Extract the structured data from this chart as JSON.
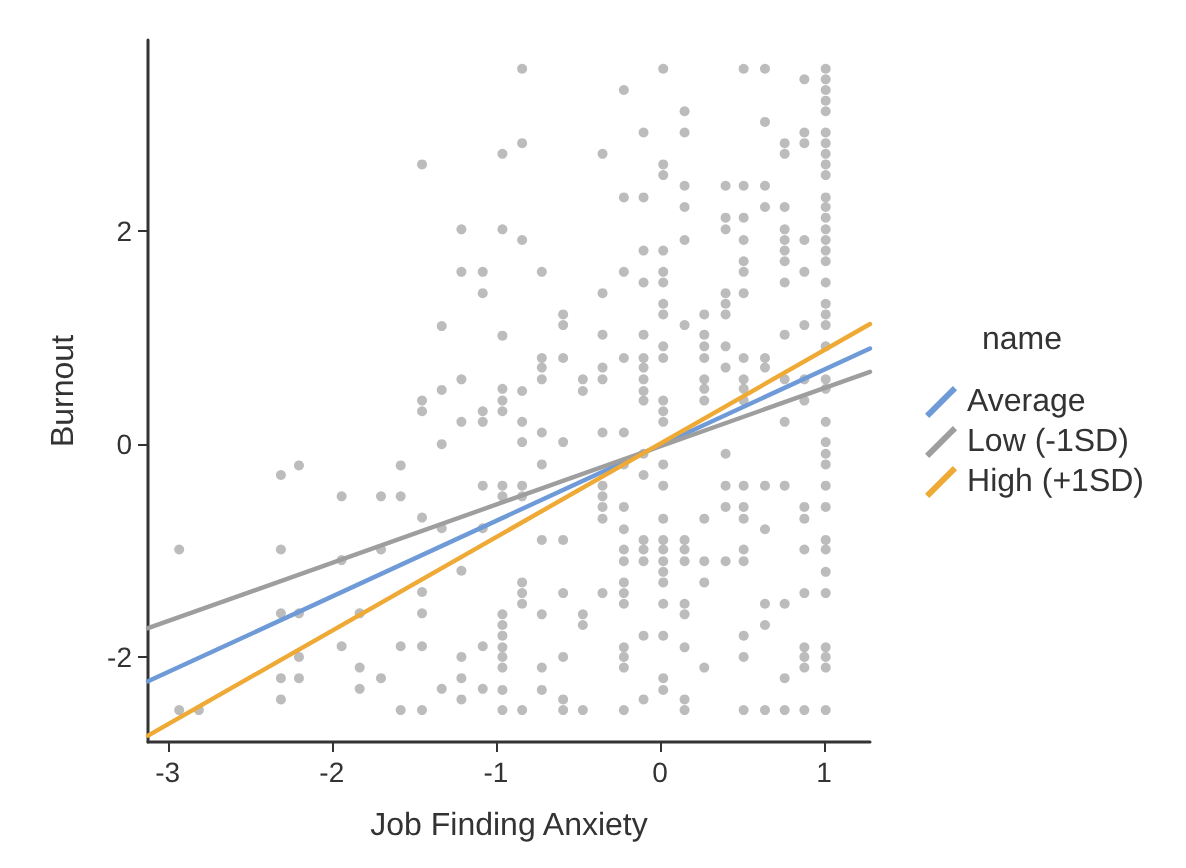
{
  "chart_data": {
    "type": "scatter",
    "xlabel": "Job Finding Anxiety",
    "ylabel": "Burnout",
    "legend_title": "name",
    "legend": "right",
    "xlim": [
      -3.12,
      1.28
    ],
    "ylim": [
      -2.8,
      3.8
    ],
    "xticks": [
      -3,
      -2,
      -1,
      0,
      1
    ],
    "yticks": [
      -2,
      0,
      2
    ],
    "series": [
      {
        "marker": "circle",
        "color": "#a6a6a6",
        "x": [
          -2.93,
          -2.93,
          -2.81,
          -2.31,
          -2.2,
          -2.31,
          -2.31,
          -2.2,
          -2.2,
          -2.31,
          -2.2,
          -2.31,
          -1.94,
          -1.94,
          -1.94,
          -1.83,
          -1.83,
          -1.83,
          -1.7,
          -1.7,
          -1.7,
          -1.58,
          -1.58,
          -1.58,
          -1.58,
          -1.45,
          -1.45,
          -1.45,
          -1.45,
          -1.45,
          -1.45,
          -1.45,
          -1.45,
          -1.33,
          -1.33,
          -1.33,
          -1.33,
          -1.33,
          -1.21,
          -1.21,
          -1.21,
          -1.21,
          -1.21,
          -1.21,
          -1.21,
          -1.21,
          -1.08,
          -1.08,
          -1.08,
          -1.08,
          -1.08,
          -1.08,
          -1.08,
          -1.08,
          -0.96,
          -0.96,
          -0.96,
          -0.96,
          -0.96,
          -0.96,
          -0.96,
          -0.96,
          -0.96,
          -0.96,
          -0.96,
          -0.96,
          -0.96,
          -0.96,
          -0.96,
          -0.96,
          -0.84,
          -0.84,
          -0.84,
          -0.84,
          -0.84,
          -0.84,
          -0.84,
          -0.84,
          -0.84,
          -0.84,
          -0.84,
          -0.84,
          -0.72,
          -0.72,
          -0.72,
          -0.72,
          -0.72,
          -0.72,
          -0.72,
          -0.72,
          -0.72,
          -0.72,
          -0.59,
          -0.59,
          -0.59,
          -0.59,
          -0.59,
          -0.59,
          -0.59,
          -0.59,
          -0.59,
          -0.47,
          -0.47,
          -0.47,
          -0.47,
          -0.47,
          -0.35,
          -0.35,
          -0.35,
          -0.35,
          -0.35,
          -0.35,
          -0.35,
          -0.35,
          -0.35,
          -0.35,
          -0.35,
          -0.22,
          -0.22,
          -0.22,
          -0.22,
          -0.22,
          -0.22,
          -0.22,
          -0.22,
          -0.22,
          -0.22,
          -0.22,
          -0.22,
          -0.22,
          -0.22,
          -0.22,
          -0.22,
          -0.22,
          -0.1,
          -0.1,
          -0.1,
          -0.1,
          -0.1,
          -0.1,
          -0.1,
          -0.1,
          -0.1,
          -0.1,
          -0.1,
          -0.1,
          -0.1,
          -0.1,
          -0.1,
          -0.1,
          -0.1,
          0.02,
          0.02,
          0.02,
          0.02,
          0.02,
          0.02,
          0.02,
          0.02,
          0.02,
          0.02,
          0.02,
          0.02,
          0.02,
          0.02,
          0.02,
          0.02,
          0.02,
          0.02,
          0.02,
          0.02,
          0.02,
          0.02,
          0.02,
          0.02,
          0.02,
          0.15,
          0.15,
          0.15,
          0.15,
          0.15,
          0.15,
          0.15,
          0.15,
          0.15,
          0.15,
          0.15,
          0.15,
          0.15,
          0.15,
          0.27,
          0.27,
          0.27,
          0.27,
          0.27,
          0.27,
          0.27,
          0.27,
          0.27,
          0.27,
          0.27,
          0.4,
          0.4,
          0.4,
          0.4,
          0.4,
          0.4,
          0.4,
          0.4,
          0.4,
          0.4,
          0.4,
          0.4,
          0.51,
          0.51,
          0.51,
          0.51,
          0.51,
          0.51,
          0.51,
          0.51,
          0.51,
          0.51,
          0.51,
          0.51,
          0.51,
          0.51,
          0.51,
          0.51,
          0.51,
          0.51,
          0.51,
          0.64,
          0.64,
          0.64,
          0.64,
          0.64,
          0.64,
          0.64,
          0.64,
          0.64,
          0.64,
          0.64,
          0.76,
          0.76,
          0.76,
          0.76,
          0.76,
          0.76,
          0.76,
          0.76,
          0.76,
          0.76,
          0.76,
          0.76,
          0.76,
          0.76,
          0.76,
          0.88,
          0.88,
          0.88,
          0.88,
          0.88,
          0.88,
          0.88,
          0.88,
          0.88,
          0.88,
          0.88,
          0.88,
          0.88,
          0.88,
          0.88,
          0.88,
          1.01,
          1.01,
          1.01,
          1.01,
          1.01,
          1.01,
          1.01,
          1.01,
          1.01,
          1.01,
          1.01,
          1.01,
          1.01,
          1.01,
          1.01,
          1.01,
          1.01,
          1.01,
          1.01,
          1.01,
          1.01,
          1.01,
          1.01,
          1.01,
          1.01,
          1.01,
          1.01,
          1.01,
          1.01,
          1.01,
          1.01,
          1.01,
          1.01,
          1.01,
          1.01,
          1.01,
          1.01,
          1.01
        ],
        "values": [
          -0.99,
          -2.5,
          -2.5,
          -0.29,
          -0.2,
          -0.99,
          -1.59,
          -1.59,
          -2.0,
          -2.2,
          -2.2,
          -2.4,
          -0.49,
          -1.09,
          -1.9,
          -1.59,
          -2.1,
          -2.3,
          -0.49,
          -0.99,
          -2.2,
          -0.2,
          -0.49,
          -1.9,
          -2.5,
          2.63,
          0.41,
          0.31,
          -0.69,
          -1.39,
          -1.59,
          -1.9,
          -2.5,
          1.11,
          0.51,
          0,
          -0.79,
          -2.3,
          2.02,
          1.62,
          0.61,
          0.21,
          -1.19,
          -2.0,
          -2.2,
          -2.4,
          1.62,
          1.42,
          0.31,
          0.21,
          -0.39,
          -0.79,
          -1.9,
          -2.3,
          2.73,
          2.02,
          1.02,
          0.52,
          0.41,
          0.31,
          -0.39,
          -0.49,
          -1.6,
          -1.7,
          -1.8,
          -1.91,
          -2.0,
          -2.1,
          -2.31,
          -2.5,
          3.53,
          2.83,
          1.92,
          0.5,
          0.21,
          0.02,
          -0.39,
          -0.49,
          -1.3,
          -1.4,
          -1.5,
          -2.5,
          1.62,
          0.81,
          0.72,
          0.61,
          0.11,
          -0.19,
          -0.9,
          -1.6,
          -2.1,
          -2.31,
          1.22,
          1.12,
          0.81,
          0.02,
          -0.9,
          -1.4,
          -2.0,
          -2.4,
          -2.5,
          0.61,
          0.5,
          -1.6,
          -1.7,
          -2.5,
          2.73,
          1.42,
          1.03,
          0.72,
          0.61,
          0.11,
          -0.39,
          -0.49,
          -0.59,
          -0.7,
          -1.4,
          3.33,
          2.32,
          1.62,
          0.81,
          0.11,
          -0.19,
          -0.59,
          -0.8,
          -0.99,
          -1.1,
          -1.3,
          -1.4,
          -1.5,
          -1.91,
          -2.0,
          -2.1,
          -2.5,
          2.93,
          2.32,
          1.82,
          1.52,
          1.03,
          0.81,
          0.72,
          0.61,
          0.5,
          0.41,
          -0.09,
          -0.29,
          -0.9,
          -0.99,
          -1.1,
          -1.8,
          -2.4,
          3.53,
          2.63,
          2.53,
          1.82,
          1.62,
          1.52,
          1.32,
          1.22,
          0.92,
          0.81,
          0.41,
          0.31,
          0.21,
          -0.19,
          -0.39,
          -0.7,
          -0.9,
          -0.99,
          -1.1,
          -1.2,
          -1.3,
          -1.5,
          -1.8,
          -2.2,
          -2.31,
          3.13,
          2.93,
          2.43,
          2.23,
          1.92,
          1.12,
          -0.9,
          -0.99,
          -1.1,
          -1.5,
          -1.6,
          -1.91,
          -2.4,
          -2.5,
          1.22,
          1.03,
          0.92,
          0.81,
          0.61,
          0.52,
          0.41,
          -0.7,
          -1.1,
          -1.3,
          -2.1,
          2.43,
          2.13,
          2.02,
          1.42,
          1.32,
          1.22,
          0.92,
          0.72,
          -0.09,
          -0.39,
          -0.59,
          -1.1,
          3.53,
          2.43,
          2.13,
          1.92,
          1.72,
          1.62,
          1.42,
          0.81,
          0.61,
          0.52,
          0.41,
          -0.39,
          -0.59,
          -0.7,
          -0.99,
          -1.1,
          -1.8,
          -2.0,
          -2.5,
          3.53,
          3.03,
          2.43,
          2.23,
          0.81,
          0.72,
          -0.39,
          -0.8,
          -1.5,
          -1.7,
          -2.5,
          2.83,
          2.73,
          2.23,
          2.02,
          1.92,
          1.82,
          1.72,
          1.52,
          1.03,
          0.61,
          0.21,
          -0.39,
          -1.5,
          -2.2,
          -2.5,
          3.43,
          2.93,
          2.83,
          1.92,
          1.62,
          1.12,
          0.61,
          0.41,
          -0.59,
          -0.7,
          -0.99,
          -1.4,
          -1.91,
          -2.0,
          -2.1,
          -2.5,
          3.53,
          3.43,
          3.33,
          3.23,
          3.13,
          2.93,
          2.83,
          2.73,
          2.63,
          2.53,
          2.32,
          2.23,
          2.13,
          2.02,
          1.92,
          1.82,
          1.72,
          1.52,
          1.32,
          1.22,
          1.12,
          0.92,
          0.61,
          0.52,
          0.21,
          0.02,
          -0.09,
          -0.19,
          -0.39,
          -0.59,
          -0.9,
          -0.99,
          -1.2,
          -1.4,
          -1.91,
          -2.0,
          -2.1,
          -2.5
        ]
      },
      {
        "type": "line",
        "marker": "none",
        "name": "Average",
        "color": "#6f9ad8",
        "x": [
          -3.12,
          1.28
        ],
        "values": [
          -2.23,
          0.9
        ]
      },
      {
        "type": "line",
        "marker": "none",
        "name": "Low (-1SD)",
        "color": "#9e9e9e",
        "x": [
          -3.12,
          1.28
        ],
        "values": [
          -1.73,
          0.68
        ]
      },
      {
        "type": "line",
        "marker": "none",
        "name": "High (+1SD)",
        "color": "#efa935",
        "x": [
          -3.12,
          1.28
        ],
        "values": [
          -2.74,
          1.13
        ]
      }
    ]
  }
}
